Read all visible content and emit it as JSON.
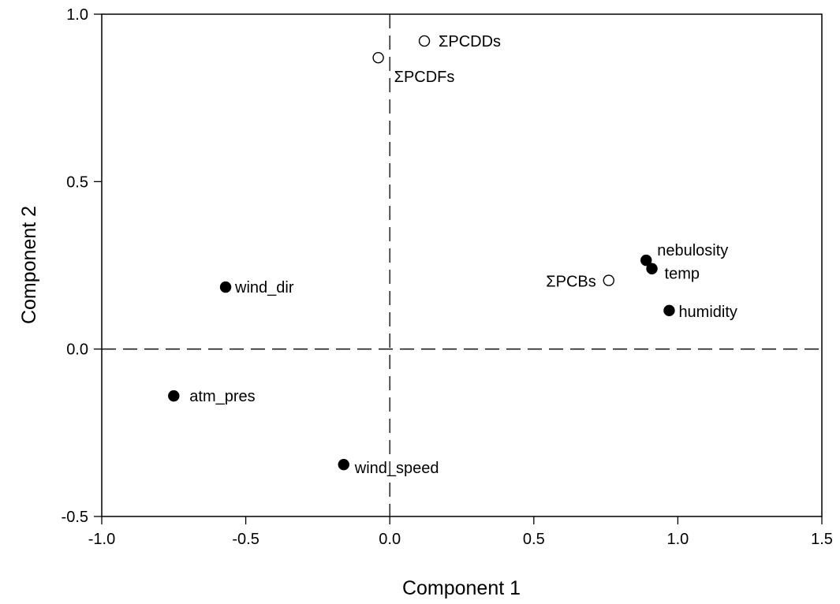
{
  "chart_data": {
    "type": "scatter",
    "title": "",
    "xlabel": "Component 1",
    "ylabel": "Component 2",
    "xlim": [
      -1.0,
      1.5
    ],
    "ylim": [
      -0.5,
      1.0
    ],
    "xticks": [
      -1.0,
      -0.5,
      0.0,
      0.5,
      1.0,
      1.5
    ],
    "yticks": [
      -0.5,
      0.0,
      0.5,
      1.0
    ],
    "xtick_labels": [
      "-1.0",
      "-0.5",
      "0.0",
      "0.5",
      "1.0",
      "1.5"
    ],
    "ytick_labels": [
      "-0.5",
      "0.0",
      "0.5",
      "1.0"
    ],
    "reference_lines": [
      {
        "axis": "x",
        "value": 0.0,
        "style": "dashed"
      },
      {
        "axis": "y",
        "value": 0.0,
        "style": "dashed"
      }
    ],
    "grid": false,
    "legend": "none",
    "series": [
      {
        "marker": "filled-circle",
        "color": "#000000",
        "points": [
          {
            "label": "wind_dir",
            "x": -0.57,
            "y": 0.185
          },
          {
            "label": "atm_pres",
            "x": -0.75,
            "y": -0.14
          },
          {
            "label": "wind_speed",
            "x": -0.16,
            "y": -0.345
          },
          {
            "label": "nebulosity",
            "x": 0.89,
            "y": 0.265
          },
          {
            "label": "temp",
            "x": 0.91,
            "y": 0.24
          },
          {
            "label": "humidity",
            "x": 0.97,
            "y": 0.115
          }
        ]
      },
      {
        "marker": "open-circle",
        "color": "#000000",
        "points": [
          {
            "label": "ΣPCDDs",
            "x": 0.12,
            "y": 0.92
          },
          {
            "label": "ΣPCDFs",
            "x": -0.04,
            "y": 0.87
          },
          {
            "label": "ΣPCBs",
            "x": 0.76,
            "y": 0.205
          }
        ]
      }
    ]
  }
}
